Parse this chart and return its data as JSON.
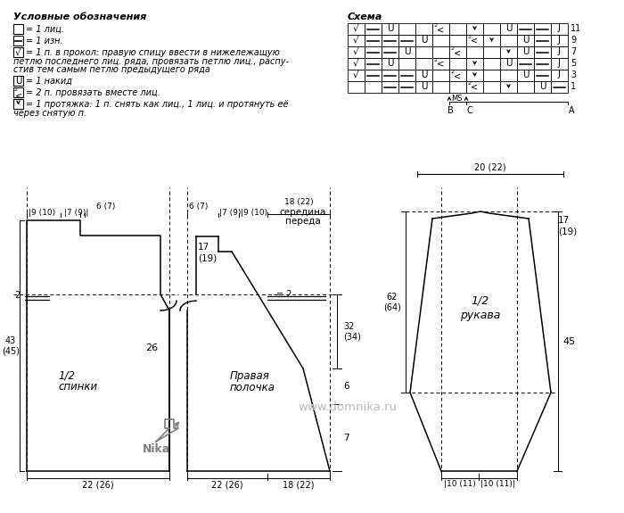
{
  "bg_color": "#ffffff",
  "legend_title": "Условные обозначения",
  "schema_title": "Схема",
  "watermark": "www.domnika.ru",
  "row_labels": [
    "11",
    "9",
    "7",
    "5",
    "3",
    "1"
  ],
  "figsize": [
    7.0,
    5.75
  ],
  "dpi": 100
}
